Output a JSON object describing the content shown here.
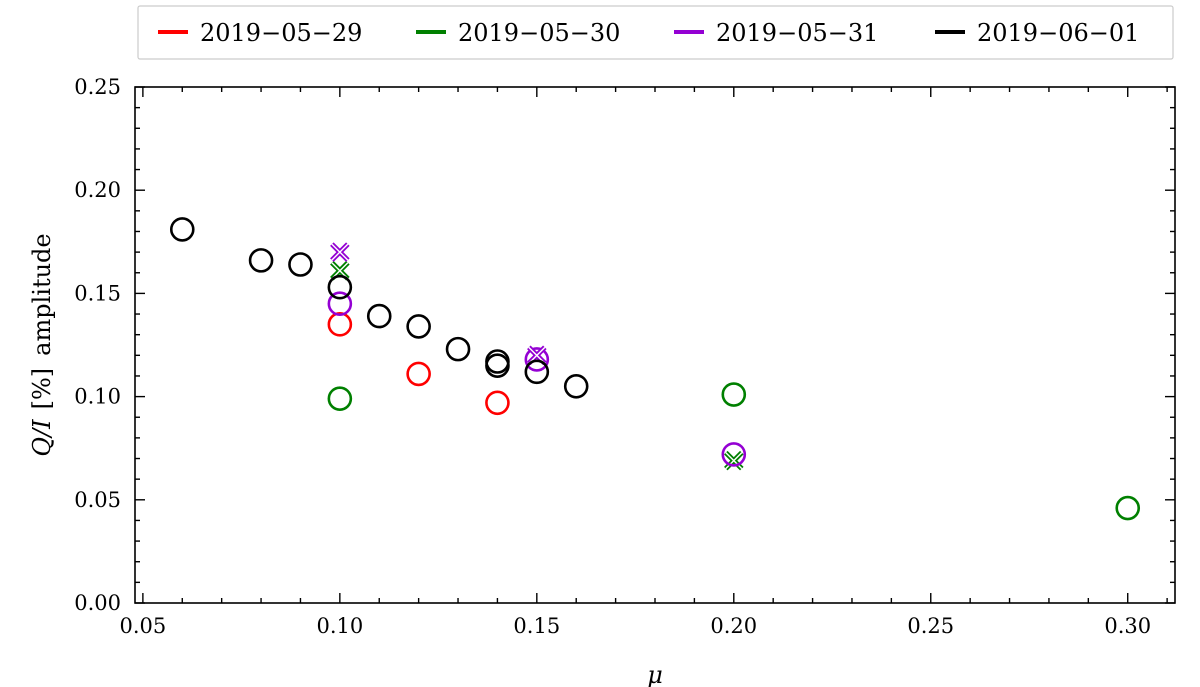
{
  "chart_data": {
    "type": "scatter",
    "title": "",
    "xlabel": "μ",
    "ylabel_parts": [
      "Q/I",
      "[%]",
      "amplitude"
    ],
    "xlim": [
      0.048,
      0.312
    ],
    "ylim": [
      0.0,
      0.25
    ],
    "xticks": [
      0.05,
      0.1,
      0.15,
      0.2,
      0.25,
      0.3
    ],
    "xtick_labels": [
      "0.05",
      "0.10",
      "0.15",
      "0.20",
      "0.25",
      "0.30"
    ],
    "yticks": [
      0.0,
      0.05,
      0.1,
      0.15,
      0.2,
      0.25
    ],
    "ytick_labels": [
      "0.00",
      "0.05",
      "0.10",
      "0.15",
      "0.20",
      "0.25"
    ],
    "grid": false,
    "legend_position": "top, outside, horizontal",
    "series": [
      {
        "name": "2019−05−29",
        "color": "#ff0000",
        "circles": [
          [
            0.1,
            0.135
          ],
          [
            0.12,
            0.111
          ],
          [
            0.14,
            0.097
          ]
        ],
        "crosses": []
      },
      {
        "name": "2019−05−30",
        "color": "#008000",
        "circles": [
          [
            0.1,
            0.099
          ],
          [
            0.2,
            0.101
          ],
          [
            0.3,
            0.046
          ]
        ],
        "crosses": [
          [
            0.1,
            0.161
          ],
          [
            0.2,
            0.069
          ]
        ]
      },
      {
        "name": "2019−05−31",
        "color": "#9400d3",
        "circles": [
          [
            0.1,
            0.145
          ],
          [
            0.15,
            0.118
          ],
          [
            0.2,
            0.072
          ]
        ],
        "crosses": [
          [
            0.1,
            0.17
          ],
          [
            0.15,
            0.12
          ]
        ]
      },
      {
        "name": "2019−06−01",
        "color": "#000000",
        "circles": [
          [
            0.06,
            0.181
          ],
          [
            0.08,
            0.166
          ],
          [
            0.09,
            0.164
          ],
          [
            0.1,
            0.153
          ],
          [
            0.11,
            0.139
          ],
          [
            0.12,
            0.134
          ],
          [
            0.13,
            0.123
          ],
          [
            0.14,
            0.117
          ],
          [
            0.14,
            0.115
          ],
          [
            0.15,
            0.112
          ],
          [
            0.16,
            0.105
          ]
        ],
        "crosses": []
      }
    ]
  }
}
